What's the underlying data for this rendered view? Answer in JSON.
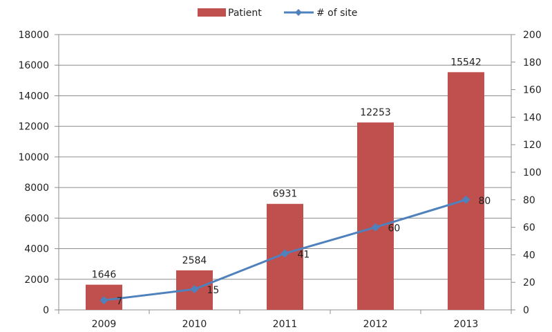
{
  "chart_data": {
    "type": "bar",
    "categories": [
      "2009",
      "2010",
      "2011",
      "2012",
      "2013"
    ],
    "series": [
      {
        "name": "Patient",
        "kind": "bar",
        "axis": "left",
        "color": "#c0504d",
        "values": [
          1646,
          2584,
          6931,
          12253,
          15542
        ]
      },
      {
        "name": "# of site",
        "kind": "line",
        "axis": "right",
        "color": "#4f81bd",
        "marker": "diamond",
        "values": [
          7,
          15,
          41,
          60,
          80
        ]
      }
    ],
    "y_left": {
      "min": 0,
      "max": 18000,
      "ticks": [
        0,
        2000,
        4000,
        6000,
        8000,
        10000,
        12000,
        14000,
        16000,
        18000
      ]
    },
    "y_right": {
      "min": 0,
      "max": 200,
      "ticks": [
        0,
        20,
        40,
        60,
        80,
        100,
        120,
        140,
        160,
        180,
        200
      ]
    },
    "grid": true,
    "legend": "top-center"
  }
}
